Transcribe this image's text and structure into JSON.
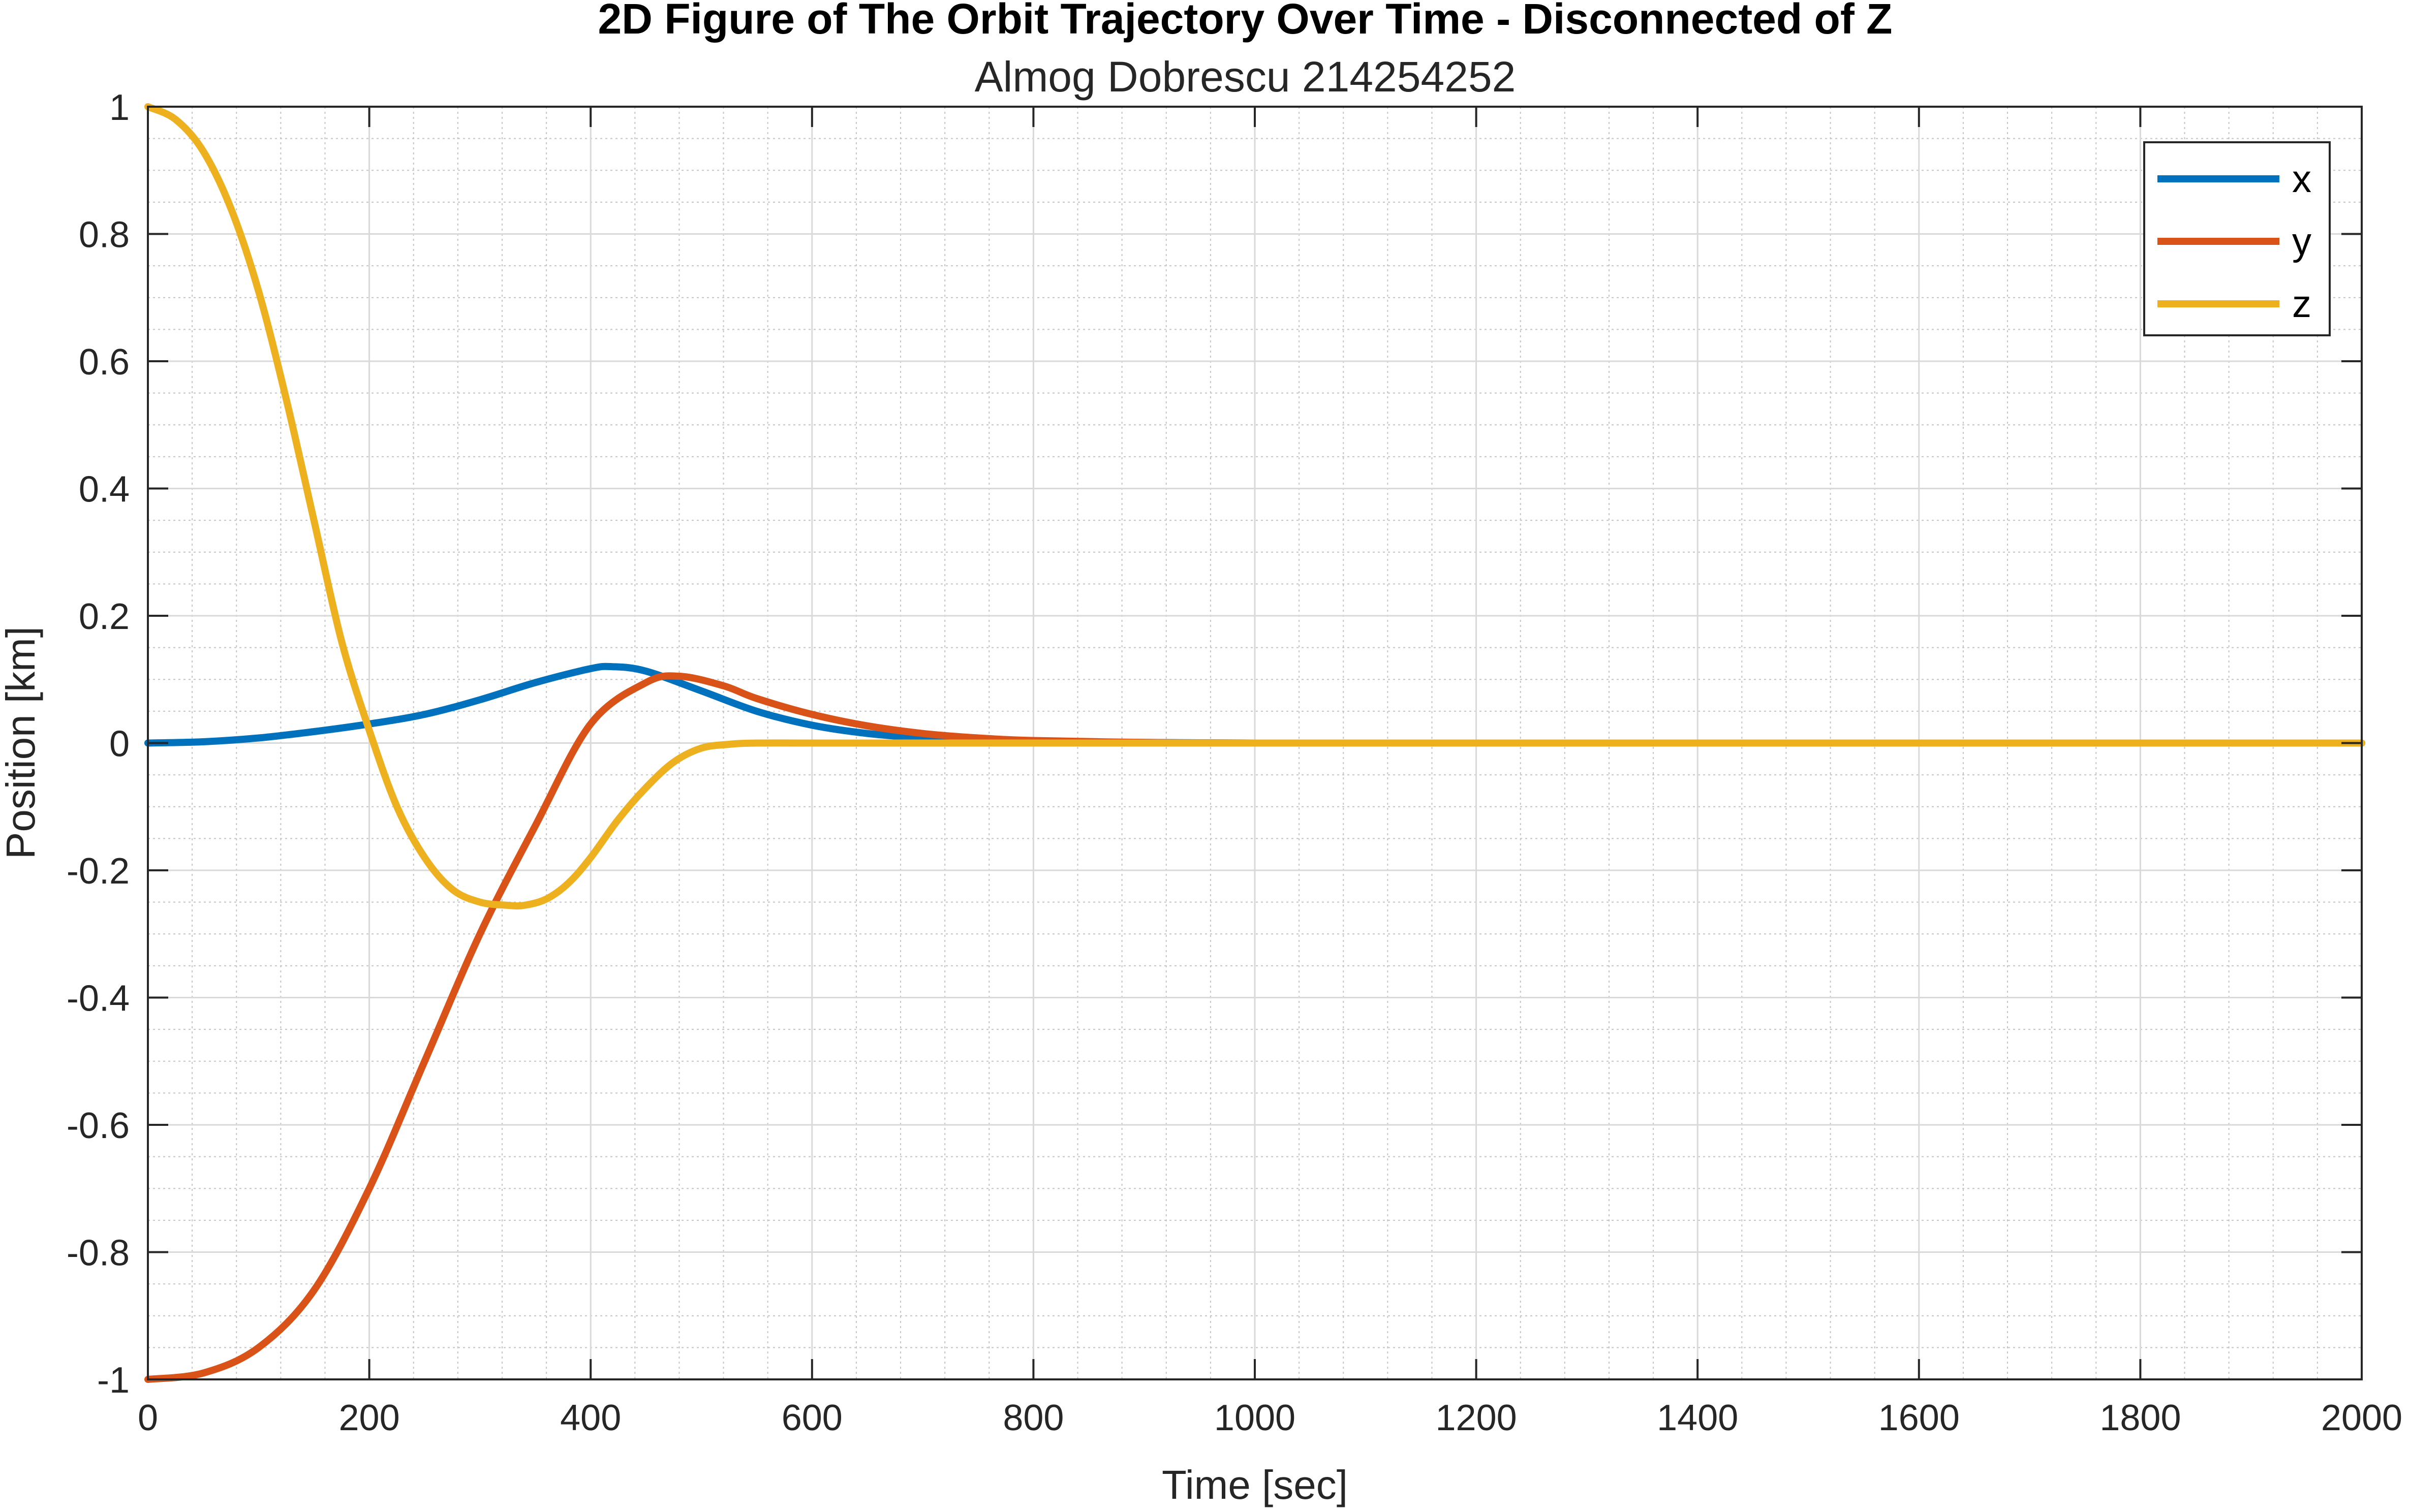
{
  "chart_data": {
    "type": "line",
    "title": "2D Figure of The Orbit Trajectory Over Time - Disconnected of Z",
    "subtitle": "Almog Dobrescu 214254252",
    "xlabel": "Time [sec]",
    "ylabel": "Position [km]",
    "xlim": [
      0,
      2000
    ],
    "ylim": [
      -1,
      1
    ],
    "xticks": [
      0,
      200,
      400,
      600,
      800,
      1000,
      1200,
      1400,
      1600,
      1800,
      2000
    ],
    "xtick_labels": [
      "0",
      "200",
      "400",
      "600",
      "800",
      "1000",
      "1200",
      "1400",
      "1600",
      "1800",
      "2000"
    ],
    "yticks": [
      -1,
      -0.8,
      -0.6,
      -0.4,
      -0.2,
      0,
      0.2,
      0.4,
      0.6,
      0.8,
      1
    ],
    "ytick_labels": [
      "-1",
      "-0.8",
      "-0.6",
      "-0.4",
      "-0.2",
      "0",
      "0.2",
      "0.4",
      "0.6",
      "0.8",
      "1"
    ],
    "grid": true,
    "minor_grid": true,
    "legend_position": "top-right",
    "series": [
      {
        "name": "x",
        "color": "#0072BD",
        "x": [
          0,
          50,
          100,
          150,
          200,
          250,
          300,
          350,
          400,
          420,
          450,
          500,
          550,
          600,
          650,
          700,
          750,
          800,
          900,
          1000,
          1200,
          1400,
          1600,
          1800,
          2000
        ],
        "y": [
          0,
          0.002,
          0.008,
          0.018,
          0.03,
          0.045,
          0.068,
          0.095,
          0.117,
          0.12,
          0.113,
          0.082,
          0.05,
          0.028,
          0.015,
          0.008,
          0.004,
          0.002,
          0.001,
          0,
          0,
          0,
          0,
          0,
          0
        ]
      },
      {
        "name": "y",
        "color": "#D95319",
        "x": [
          0,
          50,
          100,
          150,
          200,
          250,
          300,
          350,
          400,
          450,
          480,
          520,
          550,
          600,
          650,
          700,
          750,
          800,
          900,
          1000,
          1200,
          1400,
          1600,
          1800,
          2000
        ],
        "y": [
          -1,
          -0.99,
          -0.95,
          -0.86,
          -0.7,
          -0.5,
          -0.3,
          -0.13,
          0.03,
          0.095,
          0.105,
          0.09,
          0.07,
          0.045,
          0.027,
          0.015,
          0.008,
          0.004,
          0.001,
          0,
          0,
          0,
          0,
          0,
          0
        ]
      },
      {
        "name": "z",
        "color": "#EDB120",
        "x": [
          0,
          25,
          50,
          75,
          100,
          125,
          150,
          175,
          200,
          225,
          250,
          275,
          300,
          325,
          340,
          360,
          380,
          400,
          425,
          450,
          475,
          500,
          525,
          550,
          600,
          700,
          800,
          1000,
          1200,
          1400,
          1600,
          1800,
          2000
        ],
        "y": [
          1,
          0.98,
          0.93,
          0.84,
          0.71,
          0.54,
          0.35,
          0.16,
          0.02,
          -0.1,
          -0.18,
          -0.23,
          -0.25,
          -0.255,
          -0.255,
          -0.245,
          -0.22,
          -0.18,
          -0.12,
          -0.07,
          -0.03,
          -0.008,
          -0.002,
          0,
          0,
          0,
          0,
          0,
          0,
          0,
          0,
          0,
          0
        ]
      }
    ]
  }
}
